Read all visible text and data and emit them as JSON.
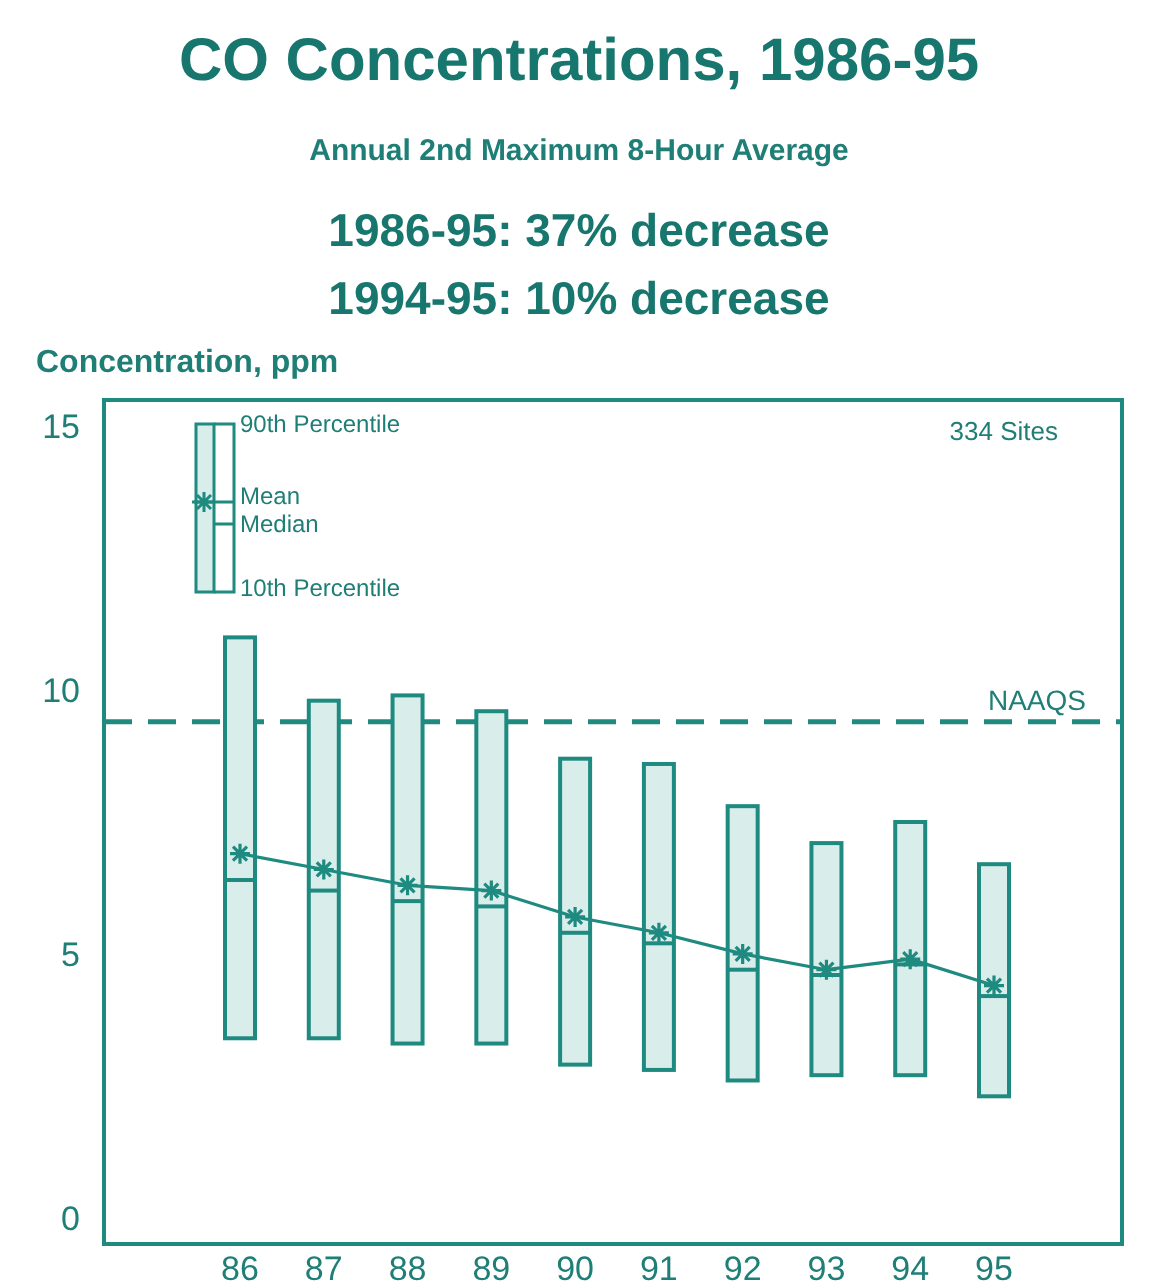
{
  "chart_data": {
    "type": "box",
    "title": "CO Concentrations, 1986-95",
    "subtitle": "Annual 2nd Maximum 8-Hour Average",
    "ylabel": "Concentration, ppm",
    "annotations": [
      "1986-95: 37% decrease",
      "1994-95: 10% decrease",
      "334 Sites",
      "90th Percentile",
      "Mean",
      "Median",
      "10th Percentile"
    ],
    "categories": [
      "86",
      "87",
      "88",
      "89",
      "90",
      "91",
      "92",
      "93",
      "94",
      "95"
    ],
    "color": "#1f8a80",
    "boxes": [
      {
        "low": 3.4,
        "q1": 3.4,
        "median": 6.4,
        "q3": 11.0,
        "high": 11.0
      },
      {
        "low": 3.4,
        "q1": 3.4,
        "median": 6.2,
        "q3": 9.8,
        "high": 9.8
      },
      {
        "low": 3.3,
        "q1": 3.3,
        "median": 6.0,
        "q3": 9.9,
        "high": 9.9
      },
      {
        "low": 3.3,
        "q1": 3.3,
        "median": 5.9,
        "q3": 9.6,
        "high": 9.6
      },
      {
        "low": 2.9,
        "q1": 2.9,
        "median": 5.4,
        "q3": 8.7,
        "high": 8.7
      },
      {
        "low": 2.8,
        "q1": 2.8,
        "median": 5.2,
        "q3": 8.6,
        "high": 8.6
      },
      {
        "low": 2.6,
        "q1": 2.6,
        "median": 4.7,
        "q3": 7.8,
        "high": 7.8
      },
      {
        "low": 2.7,
        "q1": 2.7,
        "median": 4.6,
        "q3": 7.1,
        "high": 7.1
      },
      {
        "low": 2.7,
        "q1": 2.7,
        "median": 4.8,
        "q3": 7.5,
        "high": 7.5
      },
      {
        "low": 2.3,
        "q1": 2.3,
        "median": 4.2,
        "q3": 6.7,
        "high": 6.7
      }
    ],
    "series": [
      {
        "type": "line",
        "color": "#1f8a80",
        "marker": "cross",
        "values": [
          6.9,
          6.6,
          6.3,
          6.2,
          5.7,
          5.4,
          5.0,
          4.7,
          4.9,
          4.4
        ]
      }
    ],
    "ref_lines": [
      {
        "axis": "y",
        "value": 9.4,
        "label": "NAAQS",
        "line_style": "dashed",
        "color": "#1f8a80"
      }
    ],
    "ylim": [
      -0.5,
      15.5
    ],
    "yticks": [
      0,
      5,
      10,
      15
    ],
    "grid": false
  }
}
